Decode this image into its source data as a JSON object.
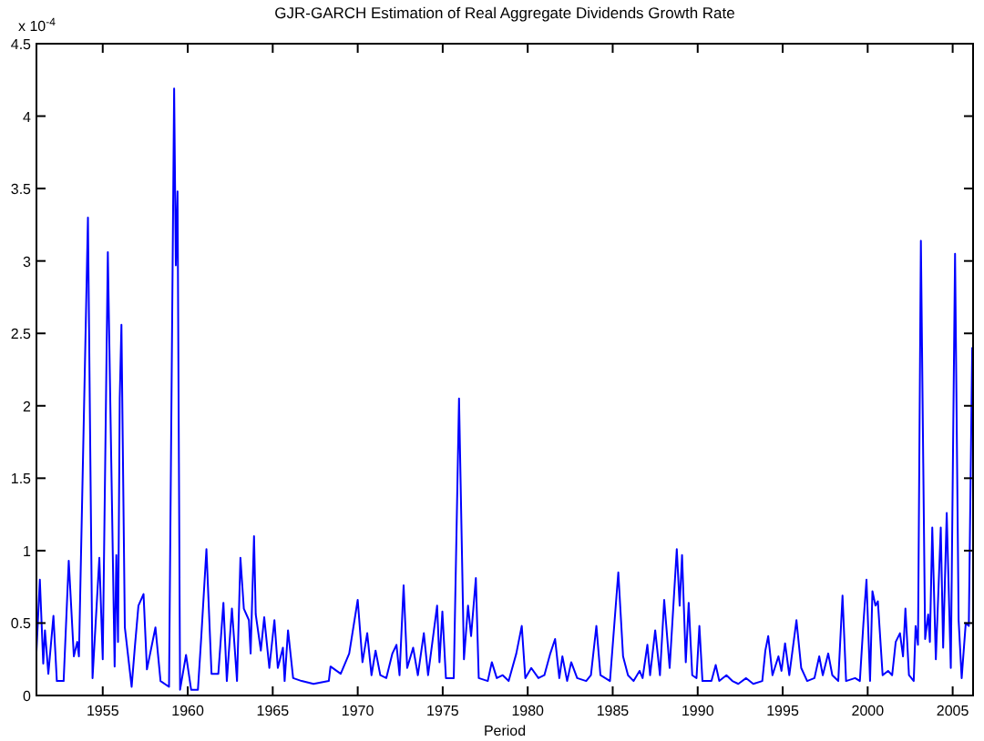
{
  "chart_data": {
    "type": "line",
    "title": "GJR-GARCH Estimation of Real Aggregate Dividends Growth Rate",
    "xlabel": "Period",
    "annotations": [
      "x 10$^{-4}$"
    ],
    "xlim": [
      1951.1,
      2006.2
    ],
    "xticks": [
      1955,
      1960,
      1965,
      1970,
      1975,
      1980,
      1985,
      1990,
      1995,
      2000,
      2005
    ],
    "ylim": [
      0,
      4.5
    ],
    "yticks": [
      0,
      0.5,
      1,
      1.5,
      2,
      2.5,
      3,
      3.5,
      4,
      4.5
    ],
    "grid": false,
    "marker": "none",
    "line_style": "solid",
    "series": [
      {
        "color": "#0000ff",
        "x": [
          1951.1,
          1951.3,
          1951.5,
          1951.6,
          1951.8,
          1952.1,
          1952.3,
          1952.7,
          1953.0,
          1953.3,
          1953.5,
          1953.6,
          1954.13,
          1954.4,
          1954.8,
          1955.0,
          1955.3,
          1955.7,
          1955.8,
          1955.9,
          1956.0,
          1956.1,
          1956.3,
          1956.7,
          1956.9,
          1957.1,
          1957.4,
          1957.6,
          1958.1,
          1958.4,
          1958.9,
          1959.2,
          1959.3,
          1959.4,
          1959.55,
          1959.9,
          1960.2,
          1960.6,
          1960.8,
          1961.1,
          1961.4,
          1961.8,
          1962.1,
          1962.3,
          1962.6,
          1962.9,
          1963.1,
          1963.3,
          1963.6,
          1963.7,
          1963.9,
          1964.0,
          1964.3,
          1964.5,
          1964.8,
          1965.1,
          1965.3,
          1965.6,
          1965.7,
          1965.9,
          1966.2,
          1966.7,
          1967.4,
          1968.3,
          1968.4,
          1969.0,
          1969.5,
          1970.0,
          1970.28,
          1970.56,
          1970.81,
          1971.05,
          1971.33,
          1971.68,
          1972.04,
          1972.28,
          1972.46,
          1972.7,
          1972.91,
          1973.26,
          1973.54,
          1973.89,
          1974.14,
          1974.67,
          1974.81,
          1974.98,
          1975.19,
          1975.65,
          1975.96,
          1976.25,
          1976.49,
          1976.67,
          1976.95,
          1977.12,
          1977.65,
          1977.89,
          1978.18,
          1978.53,
          1978.88,
          1979.33,
          1979.65,
          1979.86,
          1980.21,
          1980.63,
          1980.98,
          1981.33,
          1981.61,
          1981.86,
          1982.04,
          1982.32,
          1982.56,
          1982.91,
          1983.44,
          1983.72,
          1984.04,
          1984.28,
          1984.84,
          1985.33,
          1985.61,
          1985.9,
          1986.23,
          1986.58,
          1986.76,
          1987.04,
          1987.2,
          1987.5,
          1987.78,
          1988.03,
          1988.35,
          1988.77,
          1988.94,
          1989.08,
          1989.3,
          1989.47,
          1989.68,
          1989.93,
          1990.1,
          1990.28,
          1990.81,
          1991.06,
          1991.27,
          1991.69,
          1992.04,
          1992.39,
          1992.85,
          1993.27,
          1993.8,
          1993.98,
          1994.15,
          1994.4,
          1994.75,
          1994.93,
          1995.14,
          1995.39,
          1995.81,
          1996.09,
          1996.44,
          1996.87,
          1997.15,
          1997.36,
          1997.68,
          1997.92,
          1998.27,
          1998.52,
          1998.73,
          1999.26,
          1999.54,
          1999.75,
          1999.93,
          2000.14,
          2000.28,
          2000.46,
          2000.6,
          2000.88,
          2001.2,
          2001.44,
          2001.65,
          2001.9,
          2002.08,
          2002.22,
          2002.43,
          2002.71,
          2002.82,
          2002.96,
          2003.13,
          2003.38,
          2003.56,
          2003.66,
          2003.8,
          2004.01,
          2004.3,
          2004.44,
          2004.65,
          2004.89,
          2005.14,
          2005.35,
          2005.53,
          2005.77,
          2005.95,
          2006.15
        ],
        "values": [
          0.3,
          0.8,
          0.22,
          0.45,
          0.15,
          0.55,
          0.1,
          0.1,
          0.93,
          0.27,
          0.37,
          0.27,
          3.3,
          0.12,
          0.95,
          0.25,
          3.06,
          0.2,
          0.97,
          0.37,
          2.05,
          2.56,
          0.47,
          0.06,
          0.35,
          0.62,
          0.7,
          0.18,
          0.47,
          0.1,
          0.06,
          4.19,
          2.97,
          3.48,
          0.04,
          0.28,
          0.04,
          0.04,
          0.41,
          1.01,
          0.15,
          0.15,
          0.64,
          0.1,
          0.6,
          0.1,
          0.95,
          0.6,
          0.52,
          0.29,
          1.1,
          0.56,
          0.31,
          0.54,
          0.19,
          0.52,
          0.19,
          0.33,
          0.1,
          0.45,
          0.12,
          0.1,
          0.08,
          0.1,
          0.2,
          0.15,
          0.29,
          0.66,
          0.23,
          0.43,
          0.14,
          0.31,
          0.14,
          0.12,
          0.29,
          0.35,
          0.14,
          0.76,
          0.19,
          0.33,
          0.14,
          0.43,
          0.14,
          0.62,
          0.23,
          0.58,
          0.12,
          0.12,
          2.05,
          0.25,
          0.62,
          0.41,
          0.81,
          0.12,
          0.1,
          0.23,
          0.12,
          0.14,
          0.1,
          0.29,
          0.48,
          0.12,
          0.19,
          0.12,
          0.14,
          0.29,
          0.39,
          0.12,
          0.27,
          0.1,
          0.23,
          0.12,
          0.1,
          0.14,
          0.48,
          0.14,
          0.1,
          0.85,
          0.27,
          0.14,
          0.1,
          0.17,
          0.12,
          0.35,
          0.14,
          0.45,
          0.14,
          0.66,
          0.19,
          1.01,
          0.62,
          0.97,
          0.23,
          0.64,
          0.14,
          0.12,
          0.48,
          0.1,
          0.1,
          0.21,
          0.1,
          0.14,
          0.1,
          0.08,
          0.12,
          0.08,
          0.1,
          0.31,
          0.41,
          0.14,
          0.27,
          0.17,
          0.36,
          0.14,
          0.52,
          0.19,
          0.1,
          0.12,
          0.27,
          0.14,
          0.29,
          0.14,
          0.1,
          0.69,
          0.1,
          0.12,
          0.1,
          0.5,
          0.8,
          0.1,
          0.72,
          0.62,
          0.65,
          0.14,
          0.17,
          0.14,
          0.37,
          0.43,
          0.27,
          0.6,
          0.14,
          0.1,
          0.48,
          0.35,
          3.14,
          0.39,
          0.56,
          0.37,
          1.16,
          0.25,
          1.16,
          0.33,
          1.26,
          0.19,
          3.05,
          0.52,
          0.12,
          0.5,
          0.48,
          2.4
        ]
      }
    ]
  }
}
